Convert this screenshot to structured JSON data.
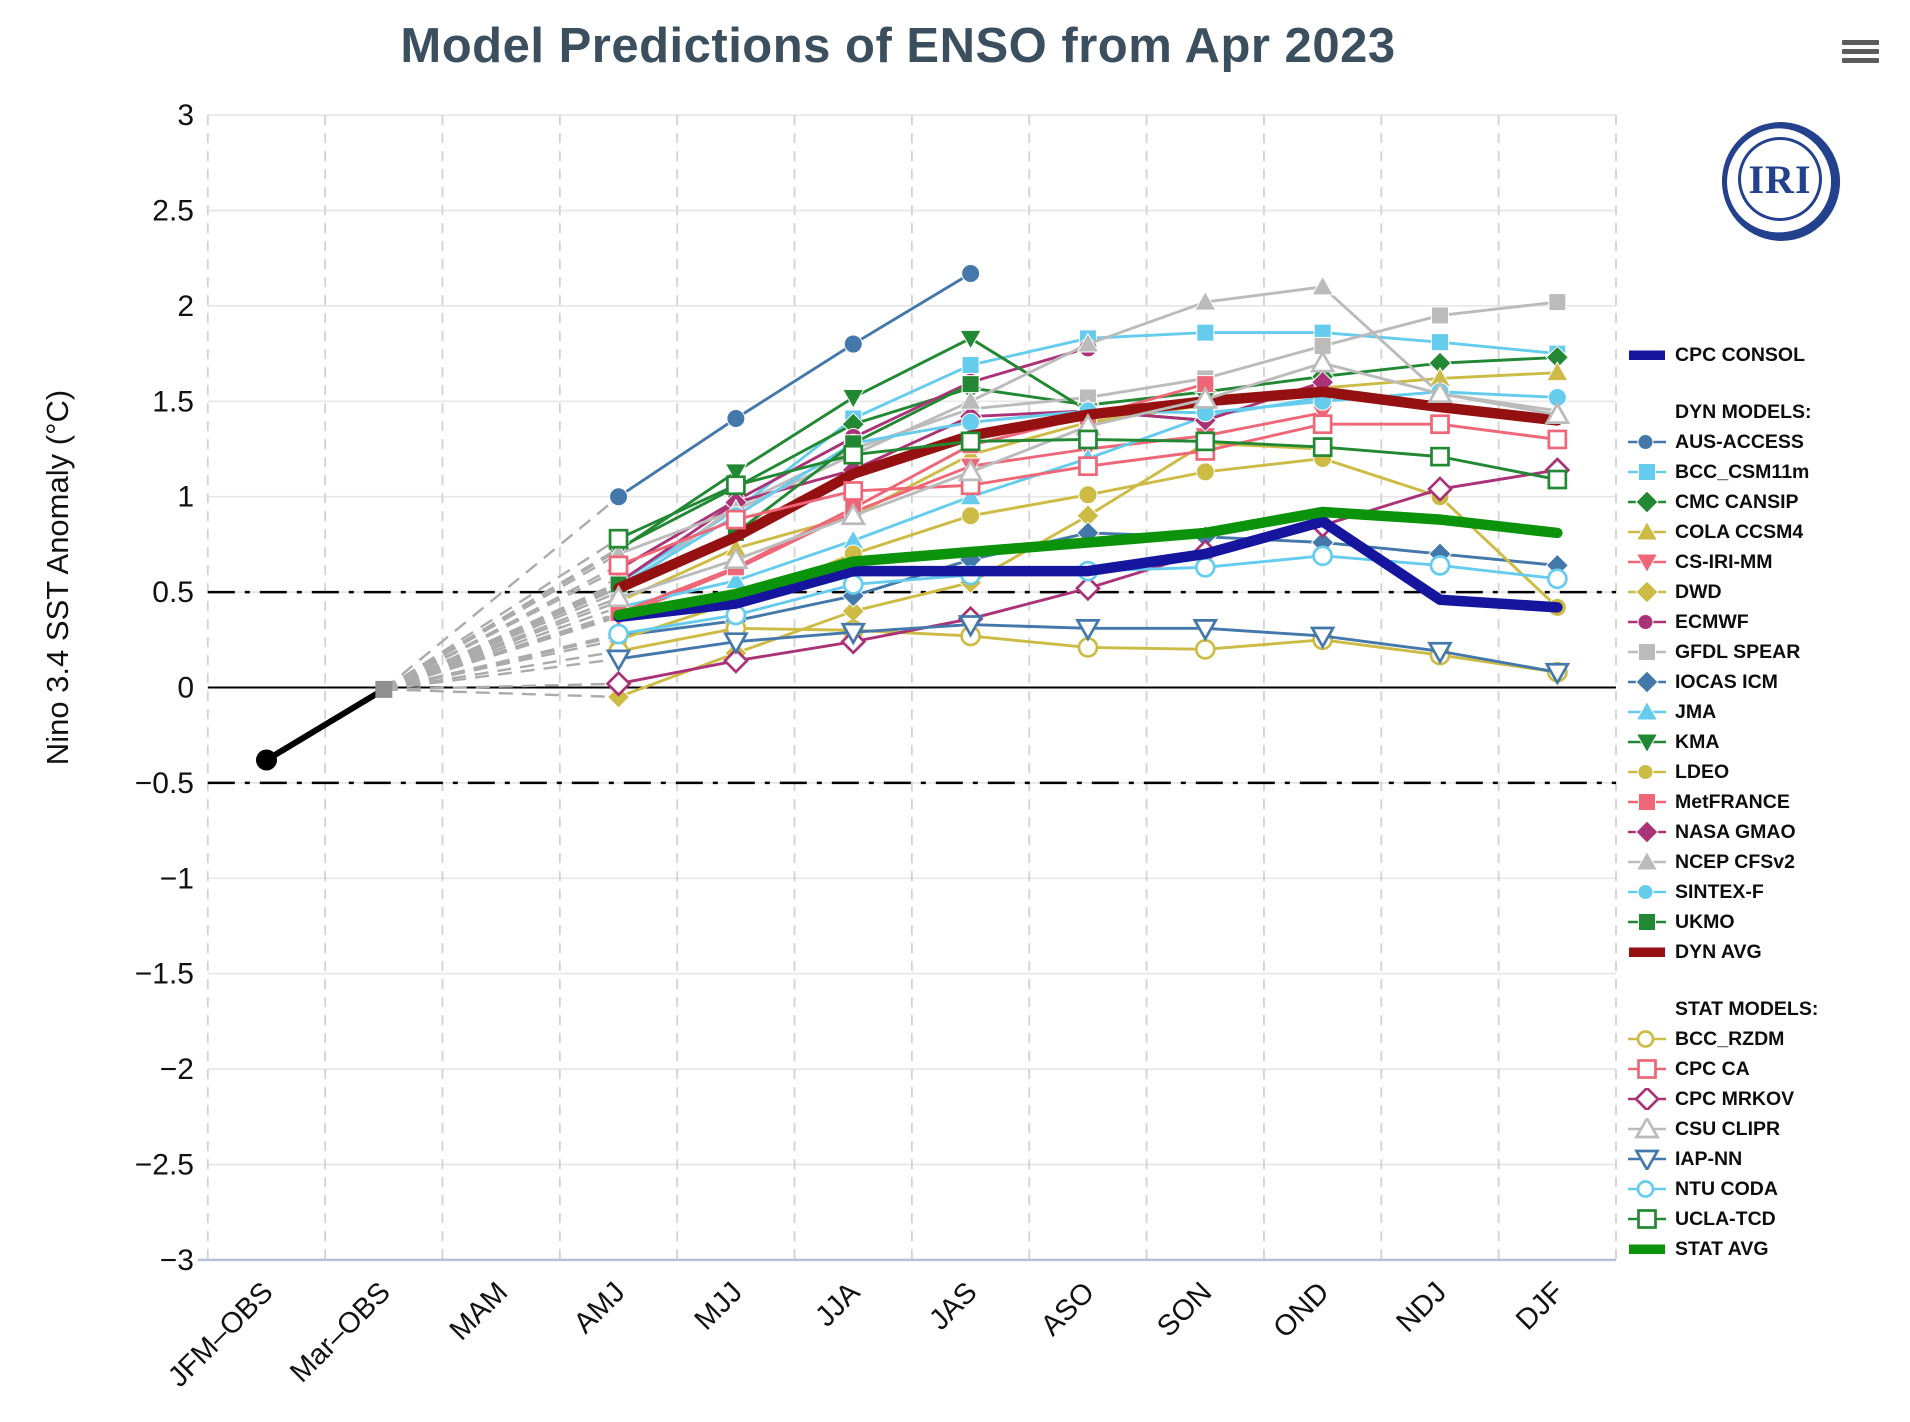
{
  "title": "Model Predictions of ENSO from Apr 2023",
  "logo_text": "IRI",
  "menu_icon": "hamburger-icon",
  "legend": {
    "dyn_header": "DYN MODELS:",
    "stat_header": "STAT MODELS:"
  },
  "chart_data": {
    "type": "line",
    "title": "Model Predictions of ENSO from Apr 2023",
    "xlabel": "",
    "ylabel": "Nino 3.4 SST Anomaly (°C)",
    "ylim": [
      -3,
      3
    ],
    "ytick_labels": [
      "3",
      "2.5",
      "2",
      "1.5",
      "1",
      "0.5",
      "0",
      "−0.5",
      "−1",
      "−1.5",
      "−2",
      "−2.5",
      "−3"
    ],
    "ytick_values": [
      3,
      2.5,
      2,
      1.5,
      1,
      0.5,
      0,
      -0.5,
      -1,
      -1.5,
      -2,
      -2.5,
      -3
    ],
    "threshold_lines": [
      0.5,
      -0.5
    ],
    "grid": true,
    "legend_position": "right",
    "categories": [
      "JFM–OBS",
      "Mar–OBS",
      "MAM",
      "AMJ",
      "MJJ",
      "JJA",
      "JAS",
      "ASO",
      "SON",
      "OND",
      "NDJ",
      "DJF"
    ],
    "observed": {
      "name": "OBS",
      "color": "#000000",
      "marker_color_jfm": "#000000",
      "marker_color_mar": "#8f8f8f",
      "x_indices": [
        0,
        1
      ],
      "values": [
        -0.38,
        -0.01
      ]
    },
    "fan": {
      "from_index": 1,
      "from_value": -0.01,
      "color": "#ababab"
    },
    "forecast_start_index": 3,
    "series": [
      {
        "name": "AUS-ACCESS",
        "group": "dyn",
        "color": "#4477AA",
        "marker": "circle",
        "filled": true,
        "values": [
          1.0,
          1.41,
          1.8,
          2.17
        ]
      },
      {
        "name": "BCC_CSM11m",
        "group": "dyn",
        "color": "#66CCEE",
        "marker": "square",
        "filled": true,
        "values": [
          0.55,
          0.93,
          1.41,
          1.69,
          1.83,
          1.86,
          1.86,
          1.81,
          1.75
        ]
      },
      {
        "name": "CMC CANSIP",
        "group": "dyn",
        "color": "#228833",
        "marker": "diamond",
        "filled": true,
        "values": [
          0.73,
          1.05,
          1.38,
          1.57,
          1.48,
          1.55,
          1.63,
          1.7,
          1.73
        ]
      },
      {
        "name": "COLA CCSM4",
        "group": "dyn",
        "color": "#CCBB44",
        "marker": "triangle-up",
        "filled": true,
        "values": [
          0.45,
          0.73,
          0.9,
          1.22,
          1.39,
          1.48,
          1.57,
          1.62,
          1.65
        ]
      },
      {
        "name": "CS-IRI-MM",
        "group": "dyn",
        "color": "#EE6677",
        "marker": "triangle-down",
        "filled": true,
        "values": [
          0.37,
          0.62,
          0.92,
          1.16,
          1.25,
          1.32,
          1.44
        ]
      },
      {
        "name": "DWD",
        "group": "dyn",
        "color": "#CCBB44",
        "marker": "diamond",
        "filled": true,
        "values": [
          -0.05,
          0.18,
          0.4,
          0.55,
          0.9,
          1.28,
          1.25
        ]
      },
      {
        "name": "ECMWF",
        "group": "dyn",
        "color": "#AA3377",
        "marker": "circle",
        "filled": true,
        "values": [
          0.62,
          0.98,
          1.31,
          1.6,
          1.78
        ]
      },
      {
        "name": "GFDL SPEAR",
        "group": "dyn",
        "color": "#BBBBBB",
        "marker": "square",
        "filled": true,
        "values": [
          0.5,
          0.95,
          1.25,
          1.46,
          1.52,
          1.62,
          1.79,
          1.95,
          2.02
        ]
      },
      {
        "name": "IOCAS ICM",
        "group": "dyn",
        "color": "#4477AA",
        "marker": "diamond",
        "filled": true,
        "values": [
          0.27,
          0.35,
          0.48,
          0.67,
          0.81,
          0.79,
          0.76,
          0.7,
          0.64
        ]
      },
      {
        "name": "JMA",
        "group": "dyn",
        "color": "#66CCEE",
        "marker": "triangle-up",
        "filled": true,
        "values": [
          0.42,
          0.56,
          0.77,
          1.0,
          1.2,
          1.42,
          1.52
        ]
      },
      {
        "name": "KMA",
        "group": "dyn",
        "color": "#228833",
        "marker": "triangle-down",
        "filled": true,
        "values": [
          0.72,
          1.13,
          1.52,
          1.83,
          1.45,
          1.4
        ]
      },
      {
        "name": "LDEO",
        "group": "dyn",
        "color": "#CCBB44",
        "marker": "circle",
        "filled": true,
        "values": [
          0.25,
          0.45,
          0.7,
          0.9,
          1.01,
          1.13,
          1.2,
          1.0,
          0.42
        ]
      },
      {
        "name": "MetFRANCE",
        "group": "dyn",
        "color": "#EE6677",
        "marker": "square",
        "filled": true,
        "values": [
          0.39,
          0.63,
          0.94,
          1.27,
          1.42,
          1.59
        ]
      },
      {
        "name": "NASA GMAO",
        "group": "dyn",
        "color": "#AA3377",
        "marker": "diamond",
        "filled": true,
        "values": [
          0.55,
          0.97,
          1.14,
          1.42,
          1.45,
          1.4,
          1.6
        ]
      },
      {
        "name": "NCEP CFSv2",
        "group": "dyn",
        "color": "#BBBBBB",
        "marker": "triangle-up",
        "filled": true,
        "values": [
          0.7,
          0.93,
          1.22,
          1.5,
          1.8,
          2.02,
          2.1,
          1.54,
          1.45
        ]
      },
      {
        "name": "SINTEX-F",
        "group": "dyn",
        "color": "#66CCEE",
        "marker": "circle",
        "filled": true,
        "values": [
          0.53,
          0.9,
          1.28,
          1.39,
          1.45,
          1.44,
          1.5,
          1.55,
          1.52
        ]
      },
      {
        "name": "UKMO",
        "group": "dyn",
        "color": "#228833",
        "marker": "square",
        "filled": true,
        "values": [
          0.54,
          0.81,
          1.28,
          1.59
        ]
      },
      {
        "name": "DYN AVG",
        "group": "dyn_avg",
        "color": "#951111",
        "marker": "none",
        "filled": true,
        "thick": true,
        "values": [
          0.52,
          0.79,
          1.12,
          1.32,
          1.43,
          1.5,
          1.55,
          1.47,
          1.4
        ]
      },
      {
        "name": "BCC_RZDM",
        "group": "stat",
        "color": "#CCBB44",
        "marker": "circle",
        "filled": false,
        "values": [
          0.19,
          0.31,
          0.3,
          0.27,
          0.21,
          0.2,
          0.25,
          0.17,
          0.08
        ]
      },
      {
        "name": "CPC CA",
        "group": "stat",
        "color": "#EE6677",
        "marker": "square",
        "filled": false,
        "values": [
          0.64,
          0.88,
          1.03,
          1.06,
          1.16,
          1.24,
          1.38,
          1.38,
          1.3
        ]
      },
      {
        "name": "CPC MRKOV",
        "group": "stat",
        "color": "#AA3377",
        "marker": "diamond",
        "filled": false,
        "values": [
          0.02,
          0.14,
          0.24,
          0.36,
          0.52,
          0.71,
          0.85,
          1.04,
          1.14
        ]
      },
      {
        "name": "CSU CLIPR",
        "group": "stat",
        "color": "#BBBBBB",
        "marker": "triangle-up",
        "filled": false,
        "values": [
          0.47,
          0.67,
          0.9,
          1.13,
          1.37,
          1.51,
          1.7,
          1.54,
          1.43
        ]
      },
      {
        "name": "IAP-NN",
        "group": "stat",
        "color": "#4477AA",
        "marker": "triangle-down",
        "filled": false,
        "values": [
          0.15,
          0.24,
          0.29,
          0.33,
          0.31,
          0.31,
          0.27,
          0.19,
          0.08
        ]
      },
      {
        "name": "NTU CODA",
        "group": "stat",
        "color": "#66CCEE",
        "marker": "circle",
        "filled": false,
        "values": [
          0.28,
          0.38,
          0.54,
          0.59,
          0.61,
          0.63,
          0.69,
          0.64,
          0.57
        ]
      },
      {
        "name": "UCLA-TCD",
        "group": "stat",
        "color": "#228833",
        "marker": "square",
        "filled": false,
        "values": [
          0.78,
          1.06,
          1.22,
          1.29,
          1.3,
          1.29,
          1.26,
          1.21,
          1.09
        ]
      },
      {
        "name": "CPC CONSOL",
        "group": "consol",
        "color": "#15159e",
        "marker": "none",
        "filled": true,
        "thick": true,
        "values": [
          0.37,
          0.44,
          0.61,
          0.61,
          0.61,
          0.7,
          0.87,
          0.46,
          0.42
        ]
      },
      {
        "name": "STAT AVG",
        "group": "stat_avg",
        "color": "#0c930c",
        "marker": "none",
        "filled": true,
        "thick": true,
        "values": [
          0.38,
          0.49,
          0.66,
          0.71,
          0.76,
          0.81,
          0.92,
          0.88,
          0.81
        ]
      }
    ]
  }
}
